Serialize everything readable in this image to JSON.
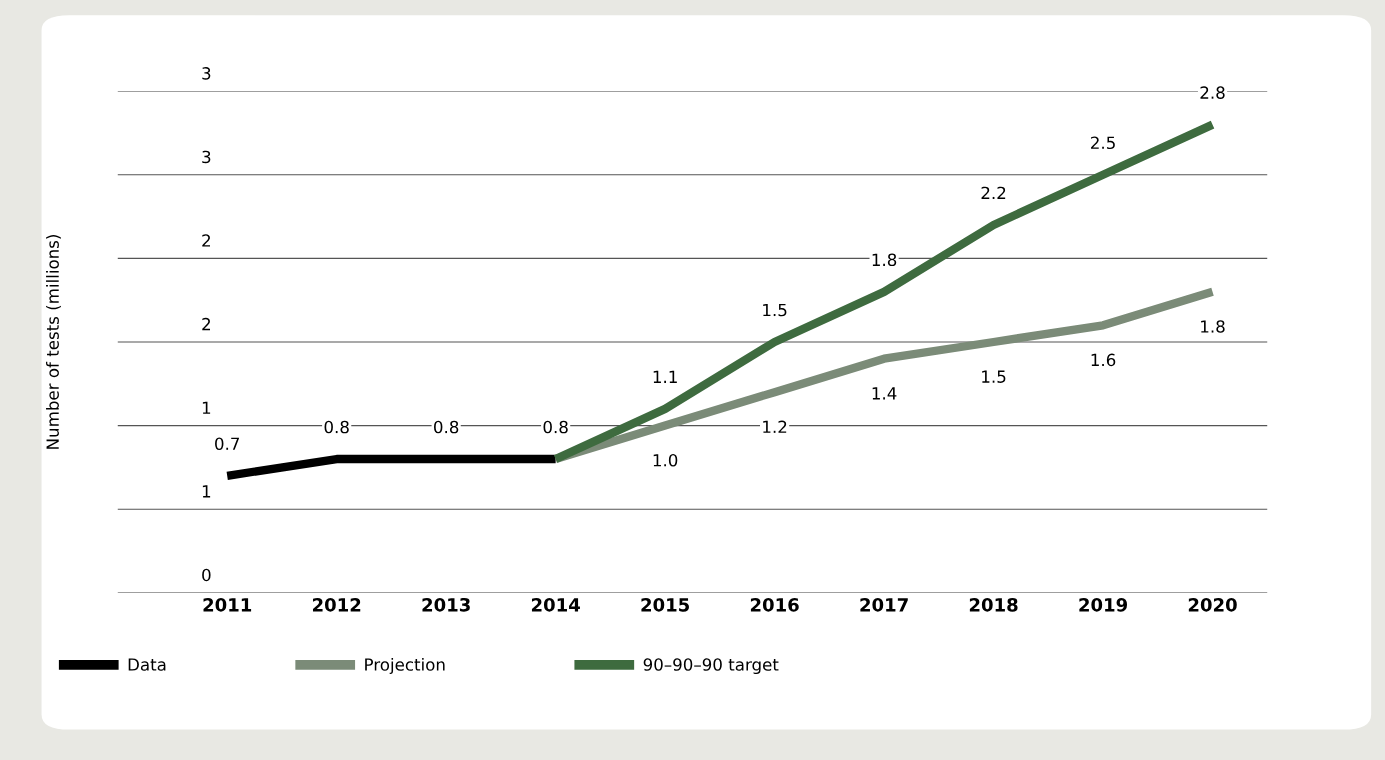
{
  "chart_data": {
    "type": "line",
    "ylabel": "Number of tests (millions)",
    "categories": [
      "2011",
      "2012",
      "2013",
      "2014",
      "2015",
      "2016",
      "2017",
      "2018",
      "2019",
      "2020"
    ],
    "series": [
      {
        "name": "Data",
        "color": "#000000",
        "values": [
          0.7,
          0.8,
          0.8,
          0.8,
          null,
          null,
          null,
          null,
          null,
          null
        ],
        "value_labels": [
          "0.7",
          "0.8",
          "0.8",
          "0.8",
          null,
          null,
          null,
          null,
          null,
          null
        ]
      },
      {
        "name": "Projection",
        "color": "#7b8b78",
        "values": [
          null,
          null,
          null,
          0.8,
          1.0,
          1.2,
          1.4,
          1.5,
          1.6,
          1.8
        ],
        "value_labels": [
          null,
          null,
          null,
          null,
          "1.0",
          "1.2",
          "1.4",
          "1.5",
          "1.6",
          "1.8"
        ]
      },
      {
        "name": "90–90–90 target",
        "color": "#3e6b3f",
        "values": [
          null,
          null,
          null,
          0.8,
          1.1,
          1.5,
          1.8,
          2.2,
          2.5,
          2.8
        ],
        "value_labels": [
          null,
          null,
          null,
          null,
          "1.1",
          "1.5",
          "1.8",
          "2.2",
          "2.5",
          "2.8"
        ]
      }
    ],
    "ylim": [
      0,
      3
    ],
    "yticks": [
      0,
      {
        "value": 0.5,
        "label": "1"
      },
      {
        "value": 1,
        "label": "1"
      },
      {
        "value": 1.5,
        "label": "2"
      },
      {
        "value": 2,
        "label": "2"
      },
      {
        "value": 2.5,
        "label": "3"
      },
      {
        "value": 3,
        "label": "3"
      }
    ],
    "grid": "y",
    "legend": "bottom",
    "marker": "none",
    "line_style": "solid"
  }
}
